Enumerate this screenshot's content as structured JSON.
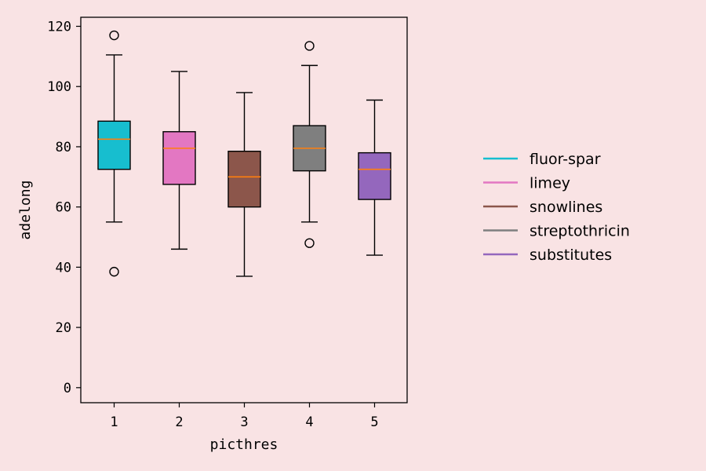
{
  "chart_data": {
    "type": "box",
    "xlabel": "picthres",
    "ylabel": "adelong",
    "categories": [
      "1",
      "2",
      "3",
      "4",
      "5"
    ],
    "ylim": [
      -5,
      123
    ],
    "yticks": [
      0,
      20,
      40,
      60,
      80,
      100,
      120
    ],
    "grid": false,
    "legend_position": "right",
    "median_color": "#ff7f0e",
    "series": [
      {
        "name": "fluor-spar",
        "color": "#17becf",
        "whisker_low": 55,
        "q1": 72.5,
        "median": 82.5,
        "q3": 88.5,
        "whisker_high": 110.5,
        "outliers": [
          117,
          38.5
        ]
      },
      {
        "name": "limey",
        "color": "#e377c2",
        "whisker_low": 46,
        "q1": 67.5,
        "median": 79.5,
        "q3": 85,
        "whisker_high": 105,
        "outliers": []
      },
      {
        "name": "snowlines",
        "color": "#8c564b",
        "whisker_low": 37,
        "q1": 60,
        "median": 70,
        "q3": 78.5,
        "whisker_high": 98,
        "outliers": []
      },
      {
        "name": "streptothricin",
        "color": "#7f7f7f",
        "whisker_low": 55,
        "q1": 72,
        "median": 79.5,
        "q3": 87,
        "whisker_high": 107,
        "outliers": [
          113.5,
          48
        ]
      },
      {
        "name": "substitutes",
        "color": "#9467bd",
        "whisker_low": 44,
        "q1": 62.5,
        "median": 72.5,
        "q3": 78,
        "whisker_high": 95.5,
        "outliers": []
      }
    ]
  }
}
